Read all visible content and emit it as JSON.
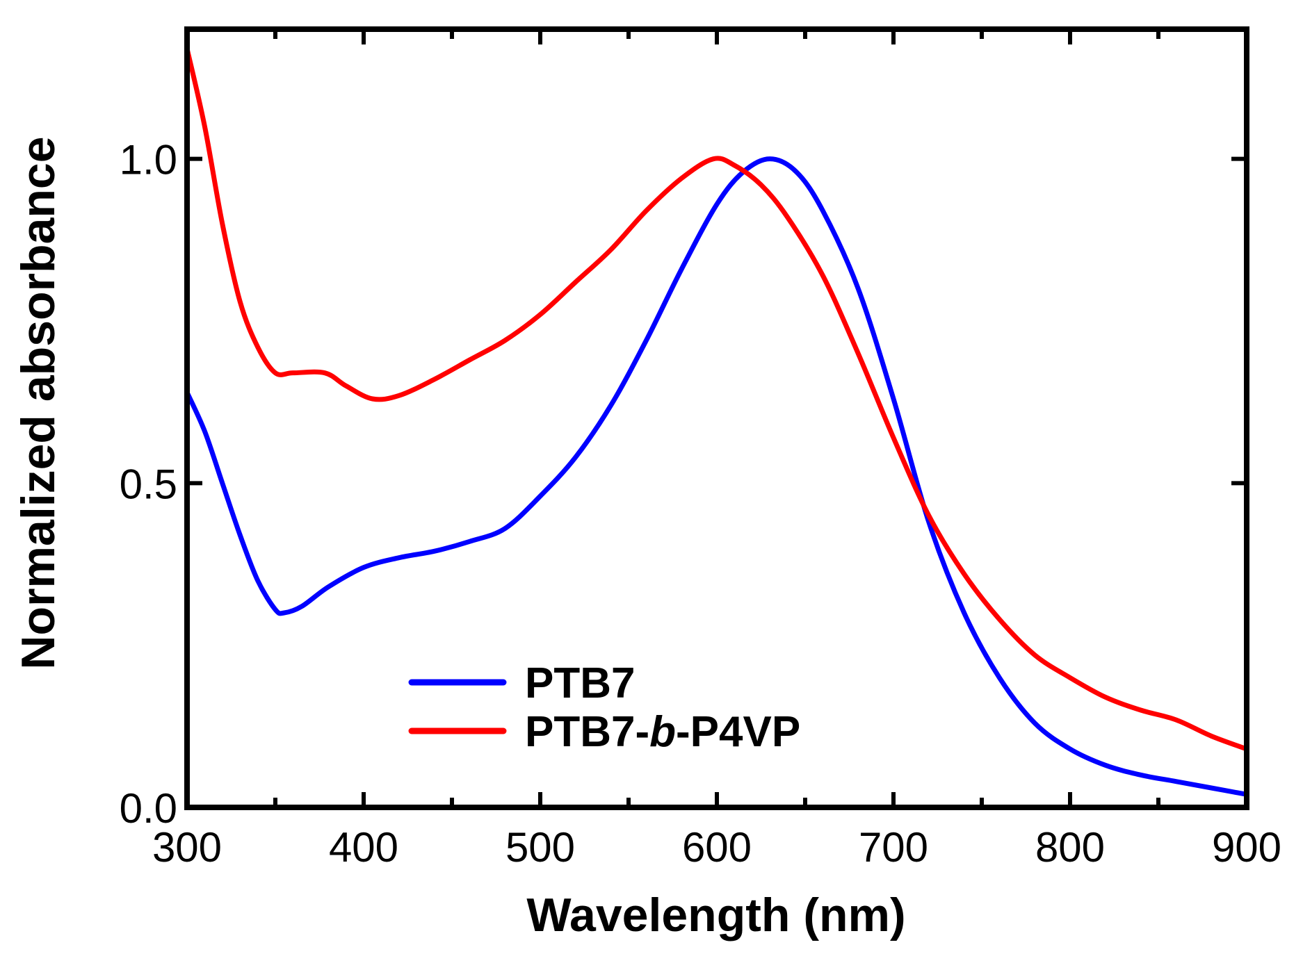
{
  "chart_data": {
    "type": "line",
    "title": "",
    "xlabel": "Wavelength (nm)",
    "ylabel": "Normalized absorbance",
    "xlim": [
      300,
      900
    ],
    "ylim": [
      0,
      1.2
    ],
    "xticks": [
      300,
      400,
      500,
      600,
      700,
      800,
      900
    ],
    "xtick_labels": [
      "300",
      "400",
      "500",
      "600",
      "700",
      "800",
      "900"
    ],
    "yticks": [
      0,
      0.5,
      1.0
    ],
    "ytick_labels": [
      "0.0",
      "0.5",
      "1.0"
    ],
    "grid": false,
    "legend_position": "lower-left-center",
    "series": [
      {
        "name": "PTB7",
        "legend_parts": [
          "PTB7"
        ],
        "color": "#0000ff",
        "x": [
          300,
          310,
          320,
          330,
          340,
          350,
          355,
          365,
          380,
          400,
          420,
          440,
          460,
          480,
          500,
          520,
          540,
          560,
          580,
          600,
          615,
          630,
          645,
          660,
          680,
          700,
          720,
          740,
          760,
          780,
          800,
          820,
          840,
          860,
          880,
          900
        ],
        "y": [
          0.64,
          0.58,
          0.5,
          0.42,
          0.35,
          0.305,
          0.3,
          0.31,
          0.34,
          0.37,
          0.385,
          0.395,
          0.41,
          0.43,
          0.48,
          0.54,
          0.62,
          0.72,
          0.83,
          0.93,
          0.98,
          1.0,
          0.98,
          0.92,
          0.8,
          0.63,
          0.44,
          0.3,
          0.2,
          0.13,
          0.09,
          0.065,
          0.05,
          0.04,
          0.03,
          0.02
        ]
      },
      {
        "name": "PTB7-b-P4VP",
        "legend_parts": [
          "PTB7-",
          "b",
          "-P4VP"
        ],
        "color": "#ff0000",
        "x": [
          300,
          310,
          320,
          330,
          340,
          350,
          360,
          378,
          390,
          405,
          420,
          440,
          460,
          480,
          500,
          520,
          540,
          560,
          580,
          598,
          610,
          625,
          640,
          660,
          680,
          700,
          720,
          740,
          760,
          780,
          800,
          820,
          840,
          860,
          880,
          900
        ],
        "y": [
          1.17,
          1.05,
          0.9,
          0.78,
          0.71,
          0.67,
          0.67,
          0.67,
          0.65,
          0.63,
          0.635,
          0.66,
          0.69,
          0.72,
          0.76,
          0.81,
          0.86,
          0.92,
          0.97,
          1.0,
          0.99,
          0.96,
          0.91,
          0.82,
          0.7,
          0.57,
          0.45,
          0.36,
          0.29,
          0.235,
          0.2,
          0.17,
          0.15,
          0.135,
          0.11,
          0.09
        ]
      }
    ]
  }
}
